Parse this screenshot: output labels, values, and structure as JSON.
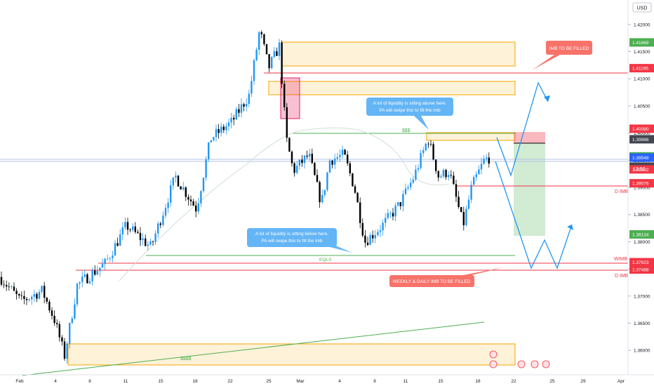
{
  "currency_label": "USD",
  "chart_data": {
    "type": "candlestick",
    "ylim": [
      1.3555,
      1.4245
    ],
    "x_ticks": [
      "Feb",
      "4",
      "8",
      "11",
      "15",
      "18",
      "22",
      "25",
      "Mar",
      "4",
      "8",
      "11",
      "15",
      "18",
      "22",
      "25",
      "29",
      "Apr"
    ],
    "y_ticks": [
      "1.42000",
      "1.41500",
      "1.41000",
      "1.40500",
      "1.40000",
      "1.39500",
      "1.39000",
      "1.38500",
      "1.38000",
      "1.37500",
      "1.37000",
      "1.36500",
      "1.36000"
    ],
    "y_tick_values": [
      1.42,
      1.415,
      1.41,
      1.405,
      1.4,
      1.395,
      1.39,
      1.385,
      1.38,
      1.375,
      1.37,
      1.365,
      1.36
    ],
    "price_tags": [
      {
        "label": "1.41669",
        "value": 1.41669,
        "color": "#4caf50"
      },
      {
        "label": "1.41195",
        "value": 1.41195,
        "color": "#f23645"
      },
      {
        "label": "1.40080",
        "value": 1.4008,
        "color": "#f23645"
      },
      {
        "label": "1.39886",
        "value": 1.39886,
        "color": "#434651"
      },
      {
        "label": "1.39571",
        "value": 1.39571,
        "color": "#4caf50"
      },
      {
        "label": "1.39548",
        "value": 1.39548,
        "color": "#2962ff"
      },
      {
        "label": "1.39382",
        "value": 1.39382,
        "color": "#434651"
      },
      {
        "label": "1.39332",
        "value": 1.39332,
        "color": "#f23645"
      },
      {
        "label": "1.39076",
        "value": 1.39076,
        "color": "#f23645"
      },
      {
        "label": "1.38134",
        "value": 1.38134,
        "color": "#4caf50"
      },
      {
        "label": "1.37623",
        "value": 1.37623,
        "color": "#f23645"
      },
      {
        "label": "1.37488",
        "value": 1.37488,
        "color": "#f23645"
      }
    ],
    "countdown": "12:52",
    "levels": [
      {
        "label": "D IMB",
        "value": 1.39076,
        "color": "#f23645"
      },
      {
        "label": "WIMB",
        "value": 1.37623,
        "color": "#f23645"
      },
      {
        "label": "D IMB",
        "value": 1.37488,
        "color": "#f23645"
      }
    ],
    "annotations": {
      "imb_to_be_filled": "IMB TO BE FILLED",
      "liquidity_above": [
        "A lot of liquidity is sitting above here.",
        "PA will swipe this to fill the imb"
      ],
      "liquidity_below": [
        "A lot of liquidity is sitting below here.",
        "PA will swipe this to fill the imb"
      ],
      "weekly_daily_imb": "WEEKLY & DAILY IMB TO BE FILLED",
      "eqls": "EQLS",
      "dollars_top": "$$$",
      "dollars_bottom": "$$$$"
    },
    "colors": {
      "up": "#2196f3",
      "down": "#000000",
      "zone": "#f7a600",
      "red": "#f23645",
      "green": "#4caf50",
      "projection": "#2196f3"
    }
  }
}
